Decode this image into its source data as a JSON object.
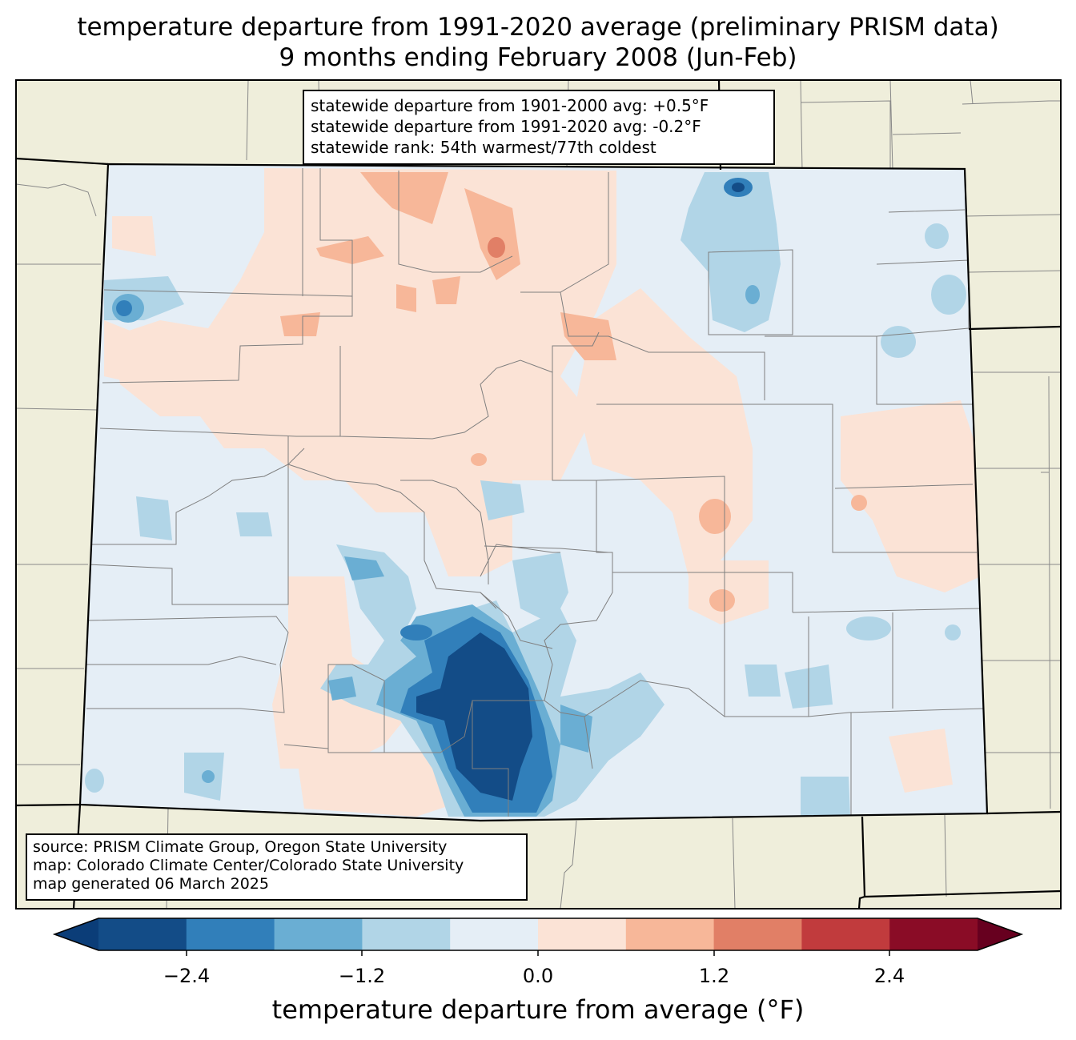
{
  "title": {
    "line1": "temperature departure from 1991-2020 average (preliminary PRISM data)",
    "line2": "9 months ending February 2008 (Jun-Feb)"
  },
  "stats": {
    "line1": "statewide departure from 1901-2000 avg: +0.5°F",
    "line2": "statewide departure from 1991-2020 avg: -0.2°F",
    "line3": "statewide rank: 54th warmest/77th coldest"
  },
  "source": {
    "line1": "source: PRISM Climate Group, Oregon State University",
    "line2": "map: Colorado Climate Center/Colorado State University",
    "line3": "map generated 06 March 2025"
  },
  "colorbar": {
    "label": "temperature departure from average (°F)",
    "ticks": [
      "−2.4",
      "−1.2",
      "0.0",
      "1.2",
      "2.4"
    ],
    "bins": [
      {
        "value": -3.0,
        "color": "#0b3d78"
      },
      {
        "value": -2.4,
        "color": "#134c87"
      },
      {
        "value": -1.8,
        "color": "#317fba"
      },
      {
        "value": -1.2,
        "color": "#6aaed3"
      },
      {
        "value": -0.6,
        "color": "#b1d5e7"
      },
      {
        "value": 0.0,
        "color": "#e5eef6"
      },
      {
        "value": 0.6,
        "color": "#fbe3d6"
      },
      {
        "value": 1.2,
        "color": "#f7b799"
      },
      {
        "value": 1.8,
        "color": "#e17f66"
      },
      {
        "value": 2.4,
        "color": "#c13b3d"
      },
      {
        "value": 3.0,
        "color": "#8a0c26"
      },
      {
        "value": 3.6,
        "color": "#67001f"
      }
    ]
  },
  "colors": {
    "land": "#efeedb",
    "base_fill": "#e5eef6"
  }
}
